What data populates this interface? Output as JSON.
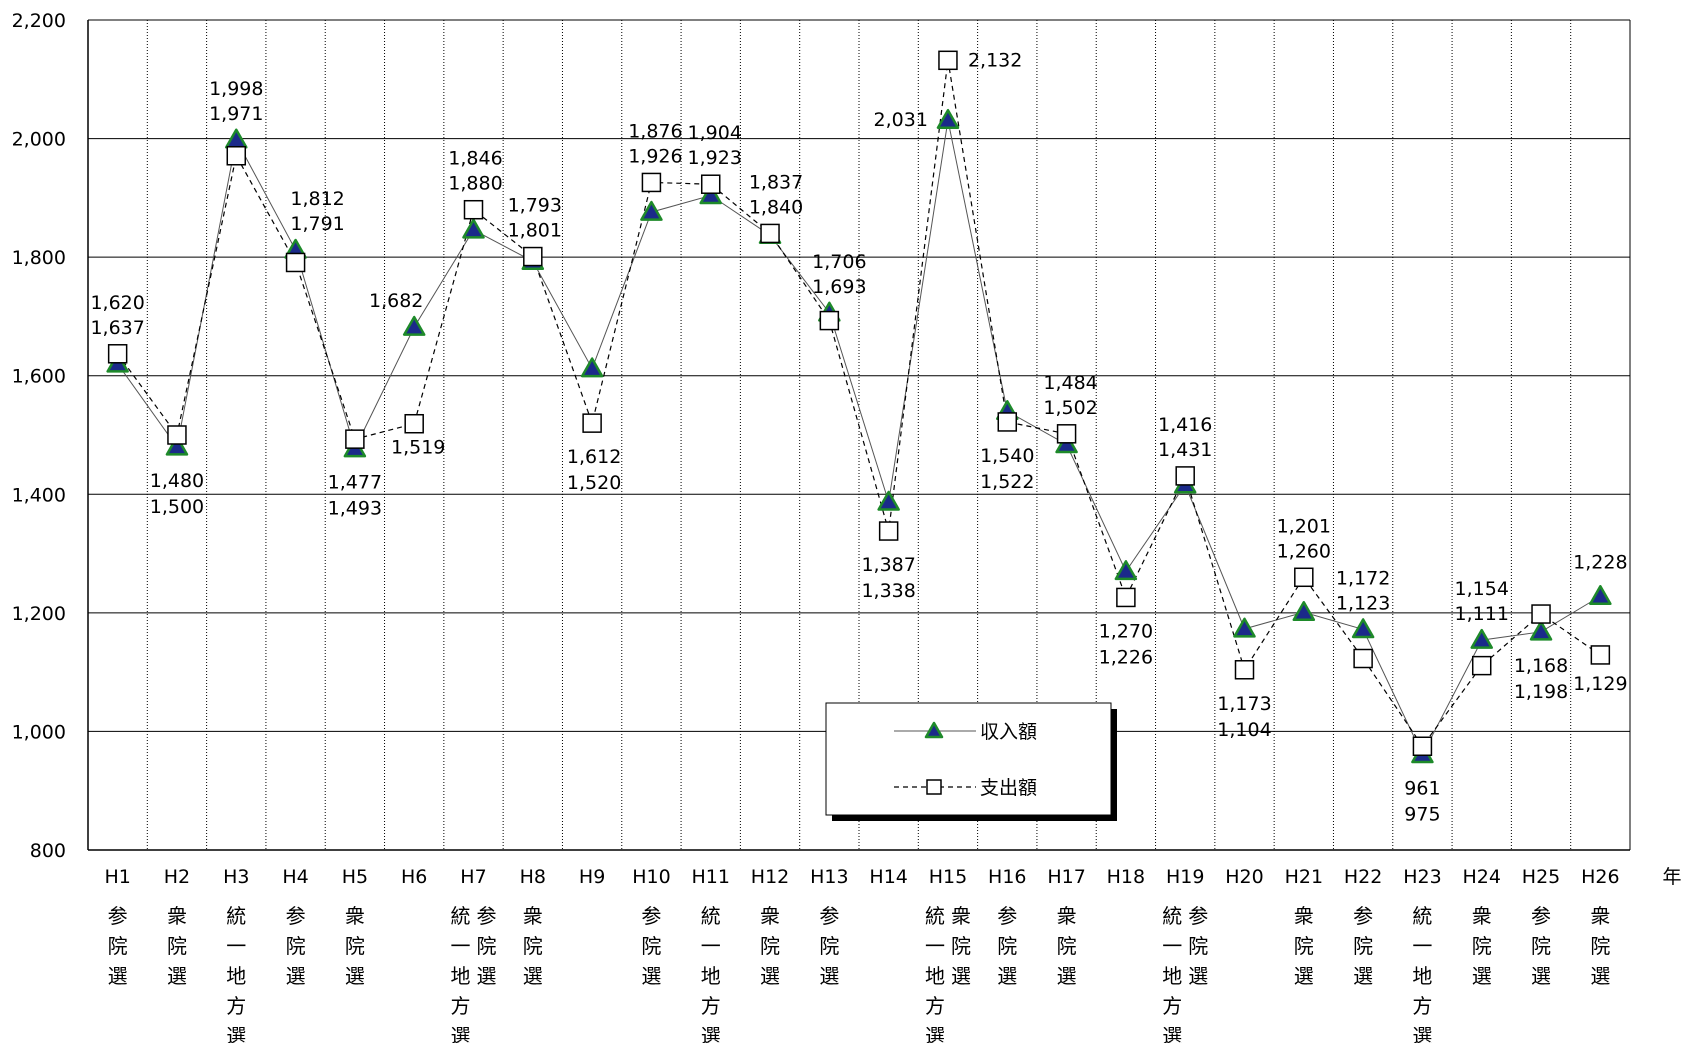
{
  "chart_data": {
    "type": "line",
    "title": "",
    "xlabel": "年",
    "ylabel": "",
    "ylim": [
      800,
      2200
    ],
    "yticks": [
      "800",
      "1,000",
      "1,200",
      "1,400",
      "1,600",
      "1,800",
      "2,000",
      "2,200"
    ],
    "grid": true,
    "legend_position": "center-bottom",
    "categories": [
      "H1",
      "H2",
      "H3",
      "H4",
      "H5",
      "H6",
      "H7",
      "H8",
      "H9",
      "H10",
      "H11",
      "H12",
      "H13",
      "H14",
      "H15",
      "H16",
      "H17",
      "H18",
      "H19",
      "H20",
      "H21",
      "H22",
      "H23",
      "H24",
      "H25",
      "H26"
    ],
    "elections": [
      [
        "参院選"
      ],
      [
        "衆院選"
      ],
      [
        "統一地方選"
      ],
      [
        "参院選"
      ],
      [
        "衆院選"
      ],
      [],
      [
        "統一地方選",
        "参院選"
      ],
      [
        "衆院選"
      ],
      [],
      [
        "参院選"
      ],
      [
        "統一地方選"
      ],
      [
        "衆院選"
      ],
      [
        "参院選"
      ],
      [],
      [
        "統一地方選",
        "衆院選"
      ],
      [
        "参院選"
      ],
      [
        "衆院選"
      ],
      [],
      [
        "統一地方選",
        "参院選"
      ],
      [],
      [
        "衆院選"
      ],
      [
        "参院選"
      ],
      [
        "統一地方選"
      ],
      [
        "衆院選"
      ],
      [
        "参院選"
      ],
      [
        "衆院選"
      ]
    ],
    "series": [
      {
        "name": "収入額",
        "marker": "triangle",
        "line": "solid",
        "color": "#1b2a8a",
        "edge_color": "#1e8a2a",
        "values": [
          1620,
          1480,
          1998,
          1812,
          1477,
          1682,
          1846,
          1793,
          1612,
          1876,
          1904,
          1837,
          1706,
          1387,
          2031,
          1540,
          1484,
          1270,
          1416,
          1173,
          1201,
          1172,
          961,
          1154,
          1168,
          1228
        ],
        "labels": [
          "1,620",
          "1,480",
          "1,998",
          "1,812",
          "1,477",
          "1,682",
          "1,846",
          "1,793",
          "1,612",
          "1,876",
          "1,904",
          "1,837",
          "1,706",
          "1,387",
          "2,031",
          "1,540",
          "1,484",
          "1,270",
          "1,416",
          "1,173",
          "1,201",
          "1,172",
          "961",
          "1,154",
          "1,168",
          "1,228"
        ]
      },
      {
        "name": "支出額",
        "marker": "square",
        "line": "dashed",
        "color": "#ffffff",
        "edge_color": "#000000",
        "values": [
          1637,
          1500,
          1971,
          1791,
          1493,
          1519,
          1880,
          1801,
          1520,
          1926,
          1923,
          1840,
          1693,
          1338,
          2132,
          1522,
          1502,
          1226,
          1431,
          1104,
          1260,
          1123,
          975,
          1111,
          1198,
          1129
        ],
        "labels": [
          "1,637",
          "1,500",
          "1,971",
          "1,791",
          "1,493",
          "1,519",
          "1,880",
          "1,801",
          "1,520",
          "1,926",
          "1,923",
          "1,840",
          "1,693",
          "1,338",
          "2,132",
          "1,522",
          "1,502",
          "1,226",
          "1,431",
          "1,104",
          "1,260",
          "1,123",
          "975",
          "1,111",
          "1,198",
          "1,129"
        ]
      }
    ]
  }
}
